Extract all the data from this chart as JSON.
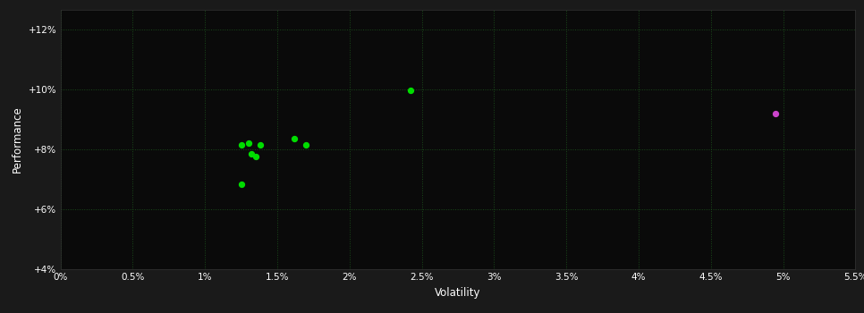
{
  "green_points": [
    [
      1.25,
      8.15
    ],
    [
      1.3,
      8.2
    ],
    [
      1.38,
      8.15
    ],
    [
      1.32,
      7.85
    ],
    [
      1.35,
      7.75
    ],
    [
      1.25,
      6.85
    ],
    [
      1.62,
      8.35
    ],
    [
      1.7,
      8.15
    ],
    [
      2.42,
      9.97
    ]
  ],
  "pink_points": [
    [
      4.95,
      9.2
    ]
  ],
  "background_plot": "#0a0a0a",
  "background_outer": "#1a1a1a",
  "grid_color": "#1a4a1a",
  "green_color": "#00dd00",
  "pink_color": "#cc44cc",
  "xlabel": "Volatility",
  "ylabel": "Performance",
  "x_ticks": [
    0.0,
    0.005,
    0.01,
    0.015,
    0.02,
    0.025,
    0.03,
    0.035,
    0.04,
    0.045,
    0.05,
    0.055
  ],
  "x_tick_labels": [
    "0%",
    "0.5%",
    "1%",
    "1.5%",
    "2%",
    "2.5%",
    "3%",
    "3.5%",
    "4%",
    "4.5%",
    "5%",
    "5.5%"
  ],
  "y_ticks": [
    4.0,
    6.0,
    8.0,
    10.0,
    12.0
  ],
  "y_tick_labels": [
    "+4%",
    "+6%",
    "+8%",
    "+10%",
    "+12%"
  ],
  "xlim": [
    0.0,
    0.055
  ],
  "ylim": [
    4.0,
    12.67
  ],
  "marker_size": 18
}
